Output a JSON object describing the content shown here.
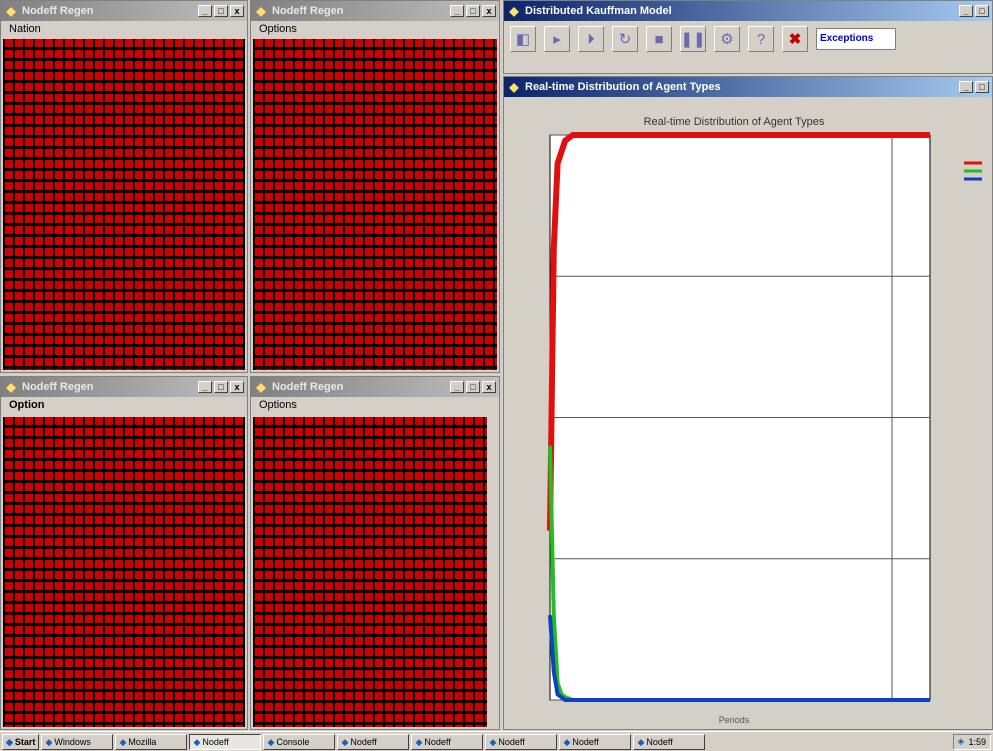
{
  "windows": {
    "top_left": {
      "title": "Nodeff Regen",
      "label": "Nation",
      "buttons": [
        "_",
        "□",
        "x"
      ]
    },
    "top_mid": {
      "title": "Nodeff Regen",
      "label": "Options",
      "buttons": [
        "_",
        "□",
        "x"
      ]
    },
    "bottom_left": {
      "title": "Nodeff Regen",
      "label": "Option",
      "buttons": [
        "_",
        "□",
        "x"
      ]
    },
    "bottom_mid": {
      "title": "Nodeff Regen",
      "label": "Options",
      "buttons": [
        "_",
        "□",
        "x"
      ]
    },
    "controller": {
      "title": "Distributed Kauffman Model",
      "buttons": [
        "_",
        "□"
      ],
      "tool_field": "Exceptions"
    },
    "plot": {
      "title": "Real-time Distribution of Agent Types",
      "buttons": [
        "_",
        "□"
      ]
    }
  },
  "chart_data": {
    "type": "line",
    "title": "Real-time Distribution of Agent Types",
    "xlabel": "Periods",
    "ylabel": "",
    "xlim": [
      0,
      500
    ],
    "ylim": [
      0,
      1
    ],
    "grid": true,
    "legend_placement": "right",
    "series": [
      {
        "color": "#e01010",
        "x": [
          0,
          5,
          10,
          15,
          20,
          30,
          500
        ],
        "y": [
          0.3,
          0.8,
          0.95,
          0.97,
          0.99,
          1.0,
          1.0
        ]
      },
      {
        "color": "#20c020",
        "x": [
          0,
          5,
          10,
          15,
          20,
          30,
          500
        ],
        "y": [
          0.45,
          0.15,
          0.03,
          0.01,
          0.005,
          0.0,
          0.0
        ]
      },
      {
        "color": "#1040c0",
        "x": [
          0,
          5,
          10,
          20,
          500
        ],
        "y": [
          0.15,
          0.05,
          0.01,
          0.0,
          0.0
        ]
      }
    ]
  },
  "taskbar": {
    "start": "Start",
    "items": [
      "Windows",
      "Mozilla",
      "Nodeff",
      "Console",
      "Nodeff",
      "Nodeff",
      "Nodeff",
      "Nodeff",
      "Nodeff"
    ],
    "clock": "1:59"
  },
  "colors": {
    "cell": "#cc0000",
    "titlebar": "#0a246a"
  }
}
